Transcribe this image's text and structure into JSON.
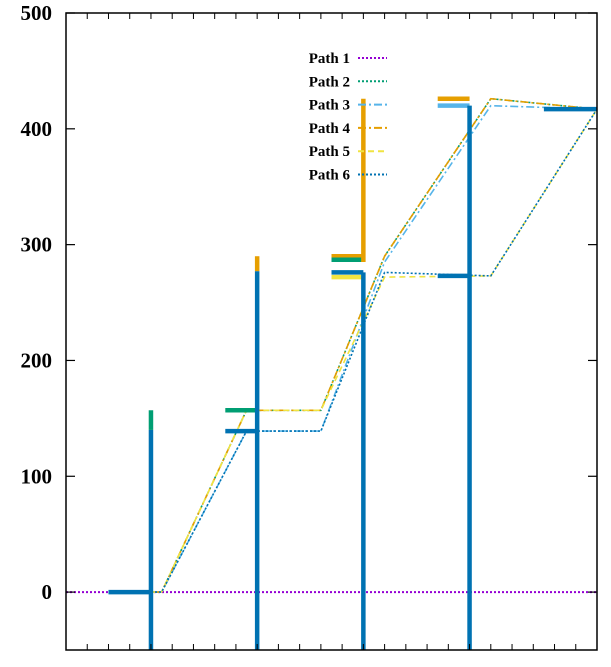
{
  "chart_data": {
    "type": "line",
    "title": "",
    "xlabel": "",
    "ylabel": "",
    "xlim": [
      0,
      10
    ],
    "ylim": [
      -50,
      500
    ],
    "yticks": [
      0,
      100,
      200,
      300,
      400,
      500
    ],
    "grid": false,
    "legend_position": "top-center",
    "series": [
      {
        "name": "Path 1",
        "color": "#9400d3",
        "dash": "dotted",
        "points": [
          [
            0,
            0
          ],
          [
            10,
            0
          ]
        ]
      },
      {
        "name": "Path 2",
        "color": "#009e73",
        "dash": "dotted",
        "points": [
          [
            1.0,
            0
          ],
          [
            1.8,
            0
          ],
          [
            3.4,
            157
          ],
          [
            4.8,
            157
          ],
          [
            6.0,
            290
          ],
          [
            8.0,
            426
          ],
          [
            10.0,
            417
          ]
        ]
      },
      {
        "name": "Path 3",
        "color": "#56b4e9",
        "dash": "dashdot",
        "points": [
          [
            1.0,
            0
          ],
          [
            1.8,
            0
          ],
          [
            3.4,
            139
          ],
          [
            4.8,
            139
          ],
          [
            6.0,
            285
          ],
          [
            8.0,
            420
          ],
          [
            10.0,
            417
          ]
        ]
      },
      {
        "name": "Path 4",
        "color": "#e69f00",
        "dash": "dashdot",
        "points": [
          [
            1.0,
            0
          ],
          [
            1.8,
            0
          ],
          [
            3.4,
            157
          ],
          [
            4.8,
            157
          ],
          [
            6.0,
            290
          ],
          [
            8.0,
            426
          ],
          [
            10.0,
            417
          ]
        ]
      },
      {
        "name": "Path 5",
        "color": "#f0e442",
        "dash": "dashed",
        "points": [
          [
            1.0,
            0
          ],
          [
            1.8,
            0
          ],
          [
            3.4,
            157
          ],
          [
            4.8,
            157
          ],
          [
            6.0,
            272
          ],
          [
            8.0,
            273
          ],
          [
            10.0,
            417
          ]
        ]
      },
      {
        "name": "Path 6",
        "color": "#0072b2",
        "dash": "dotted",
        "points": [
          [
            1.0,
            0
          ],
          [
            1.8,
            0
          ],
          [
            3.4,
            139
          ],
          [
            4.8,
            139
          ],
          [
            6.0,
            276
          ],
          [
            8.0,
            273
          ],
          [
            10.0,
            417
          ]
        ]
      }
    ],
    "segments": [
      {
        "series": "Path 6",
        "points": [
          [
            0.8,
            0
          ],
          [
            1.6,
            0
          ]
        ]
      },
      {
        "series": "Path 2",
        "points": [
          [
            3.0,
            157
          ],
          [
            3.6,
            157
          ]
        ]
      },
      {
        "series": "Path 6",
        "points": [
          [
            3.0,
            139
          ],
          [
            3.6,
            139
          ]
        ]
      },
      {
        "series": "Path 4",
        "points": [
          [
            5.0,
            290
          ],
          [
            5.6,
            290
          ]
        ]
      },
      {
        "series": "Path 2",
        "points": [
          [
            5.0,
            287
          ],
          [
            5.6,
            287
          ]
        ]
      },
      {
        "series": "Path 5",
        "points": [
          [
            5.0,
            272
          ],
          [
            5.6,
            272
          ]
        ]
      },
      {
        "series": "Path 6",
        "points": [
          [
            5.0,
            276
          ],
          [
            5.6,
            276
          ]
        ]
      },
      {
        "series": "Path 4",
        "points": [
          [
            7.0,
            426
          ],
          [
            7.6,
            426
          ]
        ]
      },
      {
        "series": "Path 3",
        "points": [
          [
            7.0,
            420
          ],
          [
            7.6,
            420
          ]
        ]
      },
      {
        "series": "Path 6",
        "points": [
          [
            7.0,
            273
          ],
          [
            7.6,
            273
          ]
        ]
      },
      {
        "series": "Path 6",
        "points": [
          [
            9.0,
            417
          ],
          [
            10.0,
            417
          ]
        ]
      }
    ],
    "vertical_bars": [
      {
        "series": "Path 2",
        "x": 1.6,
        "y_from": 140,
        "y_to": 157
      },
      {
        "series": "Path 6",
        "x": 1.6,
        "y_from": -50,
        "y_to": 140
      },
      {
        "series": "Path 4",
        "x": 3.6,
        "y_from": 277,
        "y_to": 290
      },
      {
        "series": "Path 6",
        "x": 3.6,
        "y_from": -50,
        "y_to": 277
      },
      {
        "series": "Path 4",
        "x": 5.6,
        "y_from": 285,
        "y_to": 426
      },
      {
        "series": "Path 6",
        "x": 5.6,
        "y_from": -50,
        "y_to": 276
      },
      {
        "series": "Path 6",
        "x": 7.6,
        "y_from": -50,
        "y_to": 420
      }
    ]
  }
}
